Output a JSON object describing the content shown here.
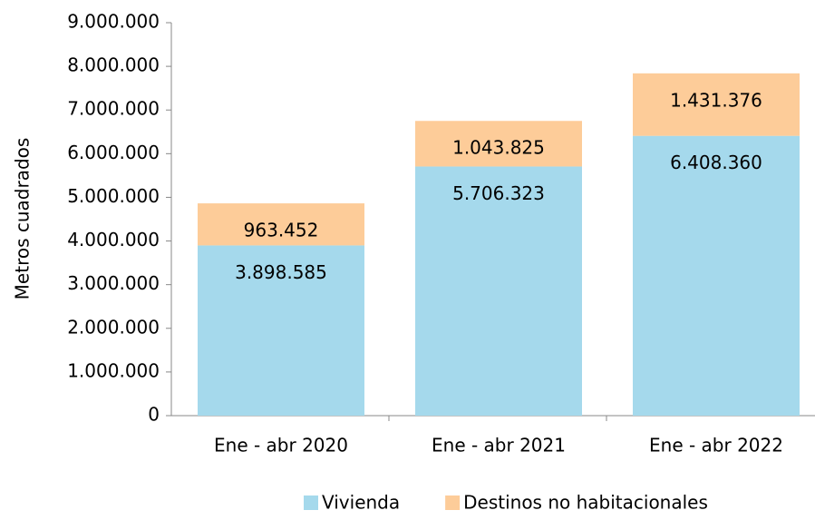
{
  "chart_data": {
    "type": "stacked_bar",
    "y_label": "Metros cuadrados",
    "categories": [
      "Ene - abr 2020",
      "Ene - abr 2021",
      "Ene - abr 2022"
    ],
    "series": [
      {
        "name": "Vivienda",
        "color": "#a5d9ec",
        "values": [
          3898585,
          5706323,
          6408360
        ],
        "value_labels": [
          "3.898.585",
          "5.706.323",
          "6.408.360"
        ]
      },
      {
        "name": "Destinos no habitacionales",
        "color": "#fdcc99",
        "values": [
          963452,
          1043825,
          1431376
        ],
        "value_labels": [
          "963.452",
          "1.043.825",
          "1.431.376"
        ]
      }
    ],
    "ylim": [
      0,
      9000000
    ],
    "yticks": [
      0,
      {
        "value": 1000000,
        "label": "1.000.000"
      },
      {
        "value": 2000000,
        "label": "2.000.000"
      },
      {
        "value": 3000000,
        "label": "3.000.000"
      },
      {
        "value": 4000000,
        "label": "4.000.000"
      },
      {
        "value": 5000000,
        "label": "5.000.000"
      },
      {
        "value": 6000000,
        "label": "6.000.000"
      },
      {
        "value": 7000000,
        "label": "7.000.000"
      },
      {
        "value": 8000000,
        "label": "8.000.000"
      },
      {
        "value": 9000000,
        "label": "9.000.000"
      }
    ],
    "grid": false
  }
}
